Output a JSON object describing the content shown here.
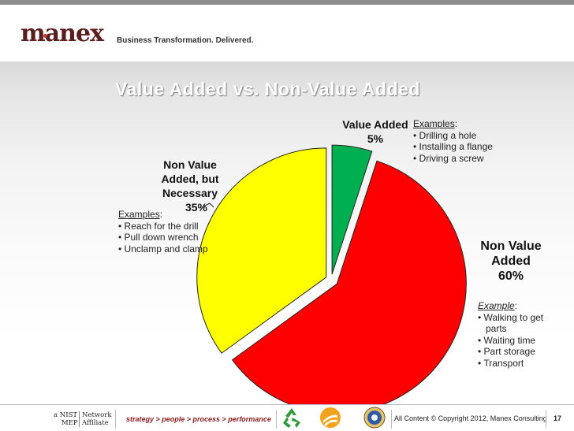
{
  "header": {
    "logo": "manex",
    "tagline": "Business Transformation. Delivered."
  },
  "slide": {
    "title": "Value Added vs. Non-Value Added"
  },
  "colors": {
    "non_value_added": "#ff0000",
    "non_value_necessary": "#ffff00",
    "value_added": "#00b050"
  },
  "chart_data": {
    "type": "pie",
    "slices": [
      {
        "label": "Value Added",
        "pct_text": "5%",
        "value": 5,
        "color": "#00b050"
      },
      {
        "label": "Non Value Added",
        "pct_text": "60%",
        "value": 60,
        "color": "#ff0000"
      },
      {
        "label": "Non Value Added, but Necessary",
        "pct_text": "35%",
        "value": 35,
        "color": "#ffff00"
      }
    ],
    "exploded": true
  },
  "labels": {
    "va_line1": "Value Added",
    "va_line2": "5%",
    "nva_line1": "Non Value",
    "nva_line2": "Added",
    "nva_line3": "60%",
    "nvn_line1": "Non Value",
    "nvn_line2": "Added, but",
    "nvn_line3": "Necessary",
    "nvn_line4": "35%"
  },
  "examples": {
    "value_added": {
      "heading": "Examples",
      "items": [
        "• Drilling a hole",
        "• Installing a flange",
        "• Driving a screw"
      ]
    },
    "necessary": {
      "heading": "Examples",
      "items": [
        "• Reach for the drill",
        "• Pull down wrench",
        "• Unclamp and clamp"
      ]
    },
    "non_value": {
      "heading": "Example",
      "items": [
        "• Walking to get",
        "  parts",
        "• Waiting time",
        "• Part storage",
        "• Transport"
      ]
    }
  },
  "footer": {
    "nist_left_1": "a NIST",
    "nist_left_2": "MEP",
    "nist_right_1": "Network",
    "nist_right_2": "Affiliate",
    "slogan": "strategy > people > process > performance",
    "copyright": "All Content © Copyright 2012, Manex Consulting",
    "page": "17"
  }
}
